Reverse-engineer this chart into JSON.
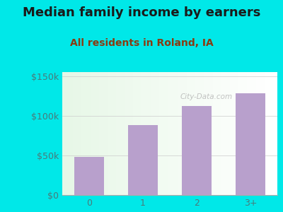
{
  "title": "Median family income by earners",
  "subtitle": "All residents in Roland, IA",
  "categories": [
    "0",
    "1",
    "2",
    "3+"
  ],
  "values": [
    48000,
    88000,
    112000,
    128000
  ],
  "bar_color": "#b8a0cc",
  "bg_outer": "#00e8e8",
  "plot_bg_topleft": [
    0.88,
    0.96,
    0.88
  ],
  "plot_bg_botright": [
    1.0,
    1.0,
    1.0
  ],
  "title_color": "#1a1a1a",
  "subtitle_color": "#8b3a10",
  "tick_color": "#4a7a7a",
  "ytick_labels": [
    "$0",
    "$50k",
    "$100k",
    "$150k"
  ],
  "ytick_values": [
    0,
    50000,
    100000,
    150000
  ],
  "ylim": [
    0,
    155000
  ],
  "title_fontsize": 13,
  "subtitle_fontsize": 10,
  "tick_fontsize": 9,
  "watermark_text": "City-Data.com",
  "watermark_color": "#aaaaaa",
  "grid_color": "#cccccc"
}
